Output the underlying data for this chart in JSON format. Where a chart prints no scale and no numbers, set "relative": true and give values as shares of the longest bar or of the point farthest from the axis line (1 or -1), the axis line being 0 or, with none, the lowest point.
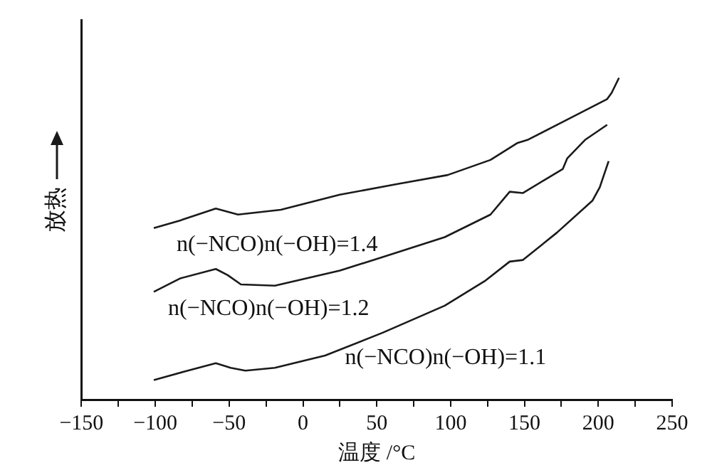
{
  "chart_data": {
    "type": "line",
    "relative": true,
    "xlabel": "温度 /°C",
    "ylabel": "放热",
    "xlim": [
      -150,
      250
    ],
    "xticks": [
      -150,
      {
        "value": -125,
        "label": null
      },
      -100,
      {
        "value": -75,
        "label": null
      },
      -50,
      {
        "value": -25,
        "label": null
      },
      0,
      {
        "value": 25,
        "label": null
      },
      50,
      {
        "value": 75,
        "label": null
      },
      100,
      {
        "value": 125,
        "label": null
      },
      150,
      {
        "value": 175,
        "label": null
      },
      200,
      {
        "value": 225,
        "label": null
      },
      250
    ],
    "grid": false,
    "legend": false,
    "marker": "none",
    "line_style": "solid",
    "series": [
      {
        "name": "n(−NCO)n(−OH)=1.4",
        "color": "#1a1a1a",
        "x": [
          -101,
          -83,
          -59,
          -44,
          -15,
          25,
          64,
          98,
          127,
          145,
          152,
          176,
          206,
          209,
          214
        ],
        "values": [
          0.533,
          0.557,
          0.594,
          0.575,
          0.59,
          0.637,
          0.67,
          0.698,
          0.745,
          0.797,
          0.807,
          0.863,
          0.934,
          0.953,
          1.0
        ]
      },
      {
        "name": "n(−NCO)n(−OH)=1.2",
        "color": "#1a1a1a",
        "x": [
          -101,
          -83,
          -59,
          -51,
          -42,
          -19,
          25,
          54,
          96,
          127,
          140,
          149,
          176,
          179,
          191,
          206
        ],
        "values": [
          0.335,
          0.377,
          0.406,
          0.387,
          0.358,
          0.354,
          0.401,
          0.443,
          0.505,
          0.575,
          0.646,
          0.642,
          0.717,
          0.75,
          0.807,
          0.854
        ]
      },
      {
        "name": "n(−NCO)n(−OH)=1.1",
        "color": "#1a1a1a",
        "x": [
          -101,
          -78,
          -59,
          -49,
          -39,
          -19,
          15,
          54,
          96,
          123,
          140,
          149,
          172,
          196,
          201,
          207
        ],
        "values": [
          0.061,
          0.09,
          0.113,
          0.099,
          0.09,
          0.099,
          0.137,
          0.208,
          0.292,
          0.368,
          0.429,
          0.434,
          0.519,
          0.618,
          0.66,
          0.741
        ]
      }
    ]
  }
}
